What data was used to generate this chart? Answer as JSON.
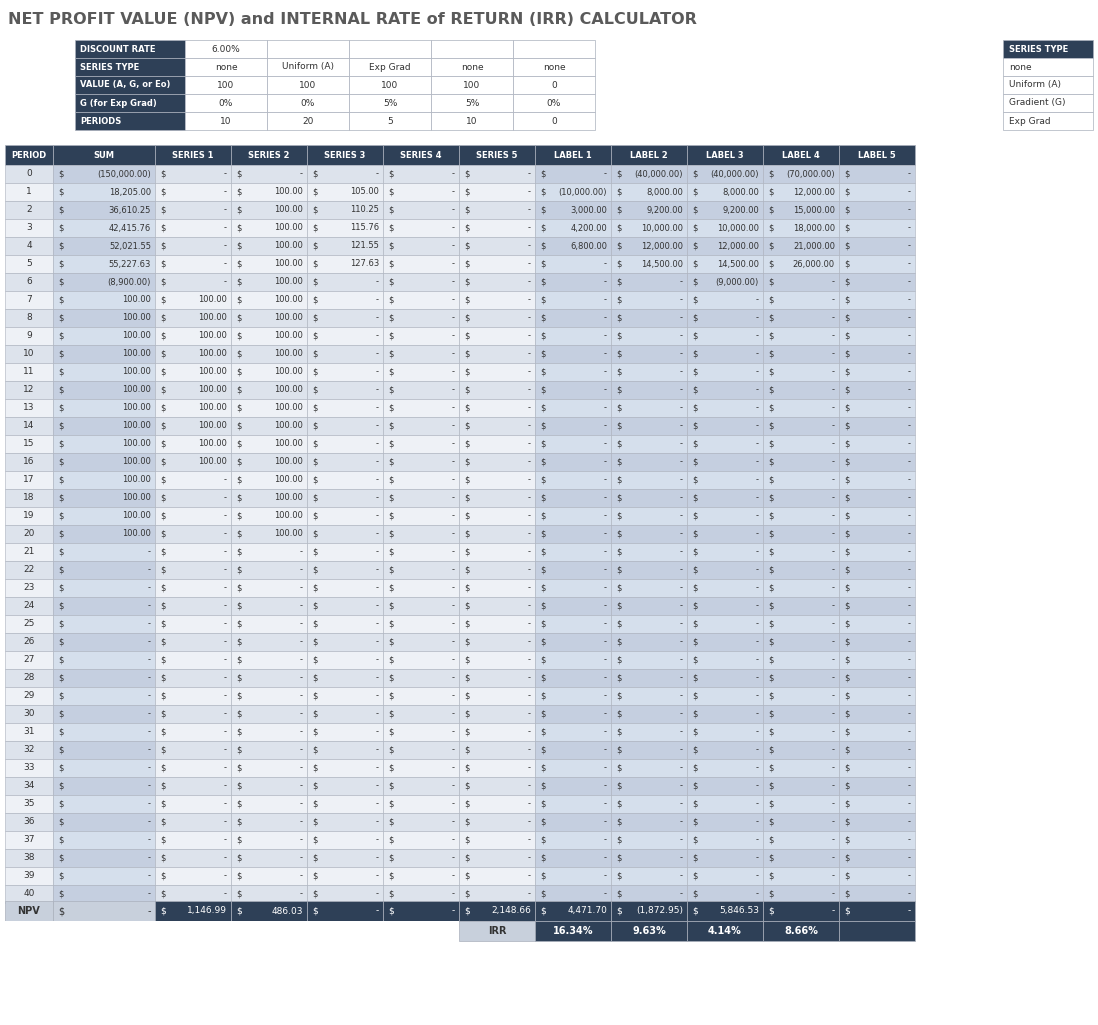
{
  "title": "NET PROFIT VALUE (NPV) and INTERNAL RATE of RETURN (IRR) CALCULATOR",
  "title_color": "#5a5a5a",
  "bg_color": "#ffffff",
  "dark_header_bg": "#2e4057",
  "dark_header_fg": "#ffffff",
  "light_row_bg": "#dde3ec",
  "white_row_bg": "#eef1f6",
  "sum_col_bg_even": "#c5cfe0",
  "sum_col_bg_odd": "#d5dfec",
  "label_col_bg_even": "#c5cfe0",
  "label_col_bg_odd": "#d5dfec",
  "npv_bg": "#2e4057",
  "npv_light_bg": "#c8d0dc",
  "irr_bg": "#2e4057",
  "irr_label_bg": "#c8d0dc",
  "border_color": "#aab0bc",
  "input_table": {
    "row_labels": [
      "DISCOUNT RATE",
      "SERIES TYPE",
      "VALUE (A, G, or Eo)",
      "G (for Exp Grad)",
      "PERIODS"
    ],
    "col1": [
      "6.00%",
      "none",
      "100",
      "0%",
      "10"
    ],
    "col2": [
      "",
      "Uniform (A)",
      "100",
      "0%",
      "20"
    ],
    "col3": [
      "",
      "Exp Grad",
      "100",
      "5%",
      "5"
    ],
    "col4": [
      "",
      "none",
      "100",
      "5%",
      "10"
    ],
    "col5": [
      "",
      "none",
      "0",
      "0%",
      "0"
    ]
  },
  "series_type_legend": [
    "none",
    "Uniform (A)",
    "Gradient (G)",
    "Exp Grad"
  ],
  "main_headers": [
    "PERIOD",
    "SUM",
    "SERIES 1",
    "SERIES 2",
    "SERIES 3",
    "SERIES 4",
    "SERIES 5",
    "LABEL 1",
    "LABEL 2",
    "LABEL 3",
    "LABEL 4",
    "LABEL 5"
  ],
  "period_col": [
    0,
    1,
    2,
    3,
    4,
    5,
    6,
    7,
    8,
    9,
    10,
    11,
    12,
    13,
    14,
    15,
    16,
    17,
    18,
    19,
    20,
    21,
    22,
    23,
    24,
    25,
    26,
    27,
    28,
    29,
    30,
    31,
    32,
    33,
    34,
    35,
    36,
    37,
    38,
    39,
    40
  ],
  "sum_col": [
    "$(150,000.00)",
    "$18,205.00",
    "$36,610.25",
    "$42,415.76",
    "$52,021.55",
    "$55,227.63",
    "$(8,900.00)",
    "$100.00",
    "$100.00",
    "$100.00",
    "$100.00",
    "$100.00",
    "$100.00",
    "$100.00",
    "$100.00",
    "$100.00",
    "$100.00",
    "$100.00",
    "$100.00",
    "$100.00",
    "$100.00",
    "$-",
    "$-",
    "$-",
    "$-",
    "$-",
    "$-",
    "$-",
    "$-",
    "$-",
    "$-",
    "$-",
    "$-",
    "$-",
    "$-",
    "$-",
    "$-",
    "$-",
    "$-",
    "$-",
    "$-"
  ],
  "series1_col": [
    "$-",
    "$-",
    "$-",
    "$-",
    "$-",
    "$-",
    "$-",
    "$100.00",
    "$100.00",
    "$100.00",
    "$100.00",
    "$100.00",
    "$100.00",
    "$100.00",
    "$100.00",
    "$100.00",
    "$100.00",
    "$-",
    "$-",
    "$-",
    "$-",
    "$-",
    "$-",
    "$-",
    "$-",
    "$-",
    "$-",
    "$-",
    "$-",
    "$-",
    "$-",
    "$-",
    "$-",
    "$-",
    "$-",
    "$-",
    "$-",
    "$-",
    "$-",
    "$-",
    "$-"
  ],
  "series2_col": [
    "$-",
    "$100.00",
    "$100.00",
    "$100.00",
    "$100.00",
    "$100.00",
    "$100.00",
    "$100.00",
    "$100.00",
    "$100.00",
    "$100.00",
    "$100.00",
    "$100.00",
    "$100.00",
    "$100.00",
    "$100.00",
    "$100.00",
    "$100.00",
    "$100.00",
    "$100.00",
    "$100.00",
    "$-",
    "$-",
    "$-",
    "$-",
    "$-",
    "$-",
    "$-",
    "$-",
    "$-",
    "$-",
    "$-",
    "$-",
    "$-",
    "$-",
    "$-",
    "$-",
    "$-",
    "$-",
    "$-",
    "$-"
  ],
  "series3_col": [
    "$-",
    "$105.00",
    "$110.25",
    "$115.76",
    "$121.55",
    "$127.63",
    "$-",
    "$-",
    "$-",
    "$-",
    "$-",
    "$-",
    "$-",
    "$-",
    "$-",
    "$-",
    "$-",
    "$-",
    "$-",
    "$-",
    "$-",
    "$-",
    "$-",
    "$-",
    "$-",
    "$-",
    "$-",
    "$-",
    "$-",
    "$-",
    "$-",
    "$-",
    "$-",
    "$-",
    "$-",
    "$-",
    "$-",
    "$-",
    "$-",
    "$-",
    "$-"
  ],
  "series4_col": [
    "$-",
    "$-",
    "$-",
    "$-",
    "$-",
    "$-",
    "$-",
    "$-",
    "$-",
    "$-",
    "$-",
    "$-",
    "$-",
    "$-",
    "$-",
    "$-",
    "$-",
    "$-",
    "$-",
    "$-",
    "$-",
    "$-",
    "$-",
    "$-",
    "$-",
    "$-",
    "$-",
    "$-",
    "$-",
    "$-",
    "$-",
    "$-",
    "$-",
    "$-",
    "$-",
    "$-",
    "$-",
    "$-",
    "$-",
    "$-",
    "$-"
  ],
  "series5_col": [
    "$-",
    "$-",
    "$-",
    "$-",
    "$-",
    "$-",
    "$-",
    "$-",
    "$-",
    "$-",
    "$-",
    "$-",
    "$-",
    "$-",
    "$-",
    "$-",
    "$-",
    "$-",
    "$-",
    "$-",
    "$-",
    "$-",
    "$-",
    "$-",
    "$-",
    "$-",
    "$-",
    "$-",
    "$-",
    "$-",
    "$-",
    "$-",
    "$-",
    "$-",
    "$-",
    "$-",
    "$-",
    "$-",
    "$-",
    "$-",
    "$-"
  ],
  "label1_col": [
    "$-",
    "$(10,000.00)",
    "$3,000.00",
    "$4,200.00",
    "$6,800.00",
    "$-",
    "$-",
    "$-",
    "$-",
    "$-",
    "$-",
    "$-",
    "$-",
    "$-",
    "$-",
    "$-",
    "$-",
    "$-",
    "$-",
    "$-",
    "$-",
    "$-",
    "$-",
    "$-",
    "$-",
    "$-",
    "$-",
    "$-",
    "$-",
    "$-",
    "$-",
    "$-",
    "$-",
    "$-",
    "$-",
    "$-",
    "$-",
    "$-",
    "$-",
    "$-",
    "$-"
  ],
  "label2_col": [
    "$(40,000.00)",
    "$8,000.00",
    "$9,200.00",
    "$10,000.00",
    "$12,000.00",
    "$14,500.00",
    "$-",
    "$-",
    "$-",
    "$-",
    "$-",
    "$-",
    "$-",
    "$-",
    "$-",
    "$-",
    "$-",
    "$-",
    "$-",
    "$-",
    "$-",
    "$-",
    "$-",
    "$-",
    "$-",
    "$-",
    "$-",
    "$-",
    "$-",
    "$-",
    "$-",
    "$-",
    "$-",
    "$-",
    "$-",
    "$-",
    "$-",
    "$-",
    "$-",
    "$-",
    "$-"
  ],
  "label3_col": [
    "$(40,000.00)",
    "$8,000.00",
    "$9,200.00",
    "$10,000.00",
    "$12,000.00",
    "$14,500.00",
    "$(9,000.00)",
    "$-",
    "$-",
    "$-",
    "$-",
    "$-",
    "$-",
    "$-",
    "$-",
    "$-",
    "$-",
    "$-",
    "$-",
    "$-",
    "$-",
    "$-",
    "$-",
    "$-",
    "$-",
    "$-",
    "$-",
    "$-",
    "$-",
    "$-",
    "$-",
    "$-",
    "$-",
    "$-",
    "$-",
    "$-",
    "$-",
    "$-",
    "$-",
    "$-",
    "$-"
  ],
  "label4_col": [
    "$(70,000.00)",
    "$12,000.00",
    "$15,000.00",
    "$18,000.00",
    "$21,000.00",
    "$26,000.00",
    "$-",
    "$-",
    "$-",
    "$-",
    "$-",
    "$-",
    "$-",
    "$-",
    "$-",
    "$-",
    "$-",
    "$-",
    "$-",
    "$-",
    "$-",
    "$-",
    "$-",
    "$-",
    "$-",
    "$-",
    "$-",
    "$-",
    "$-",
    "$-",
    "$-",
    "$-",
    "$-",
    "$-",
    "$-",
    "$-",
    "$-",
    "$-",
    "$-",
    "$-",
    "$-"
  ],
  "label5_col": [
    "$-",
    "$-",
    "$-",
    "$-",
    "$-",
    "$-",
    "$-",
    "$-",
    "$-",
    "$-",
    "$-",
    "$-",
    "$-",
    "$-",
    "$-",
    "$-",
    "$-",
    "$-",
    "$-",
    "$-",
    "$-",
    "$-",
    "$-",
    "$-",
    "$-",
    "$-",
    "$-",
    "$-",
    "$-",
    "$-",
    "$-",
    "$-",
    "$-",
    "$-",
    "$-",
    "$-",
    "$-",
    "$-",
    "$-",
    "$-",
    "$-"
  ],
  "npv_row": [
    "NPV",
    "$-",
    "$1,146.99",
    "$486.03",
    "$-",
    "$-",
    "$2,148.66",
    "$4,471.70",
    "$(1,872.95)",
    "$5,846.53",
    "$-"
  ],
  "irr_row": [
    "IRR",
    "16.34%",
    "9.63%",
    "4.14%",
    "8.66%",
    ""
  ]
}
